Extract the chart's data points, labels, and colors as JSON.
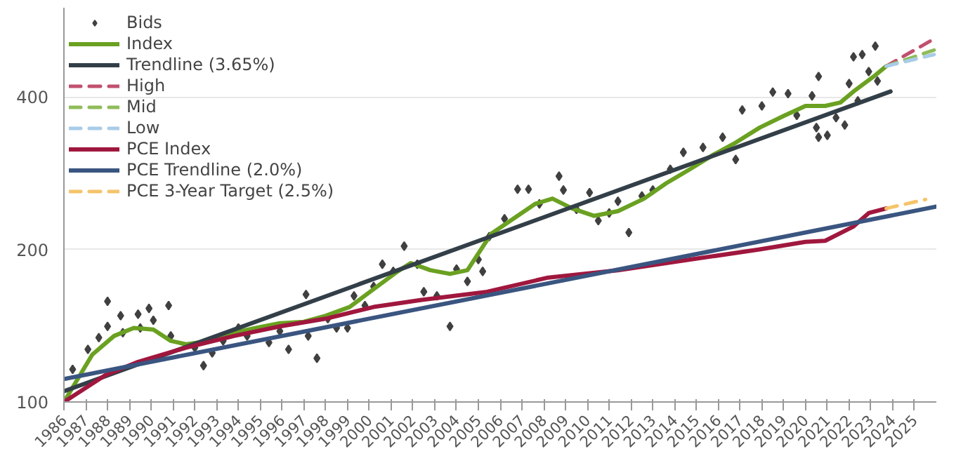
{
  "chart_data": {
    "type": "line",
    "log": "y",
    "grid": "y",
    "legend": "top left",
    "xlim": [
      1986,
      2026
    ],
    "xticks": [
      1986,
      1987,
      1988,
      1989,
      1990,
      1991,
      1992,
      1993,
      1994,
      1995,
      1996,
      1997,
      1998,
      1999,
      2000,
      2001,
      2002,
      2003,
      2004,
      2005,
      2006,
      2007,
      2008,
      2009,
      2010,
      2011,
      2012,
      2013,
      2014,
      2015,
      2016,
      2017,
      2018,
      2019,
      2020,
      2021,
      2022,
      2023,
      2024,
      2025
    ],
    "ylim": [
      100,
      600
    ],
    "yticks": [
      100,
      200,
      400
    ],
    "series": [
      {
        "name": "Bids",
        "type": "scatter",
        "marker": "diamond",
        "color": "#404040",
        "x": [
          1988.0,
          1988.0,
          1988.6,
          1988.7,
          1989.4,
          1989.5,
          1989.9,
          1990.1,
          1990.8,
          1990.9,
          1987.6,
          1986.4,
          1987.1,
          1992.0,
          1992.4,
          1992.8,
          1993.3,
          1994.0,
          1994.4,
          1995.4,
          1995.9,
          1996.3,
          1997.1,
          1997.6,
          1998.1,
          1997.2,
          1998.5,
          1999.0,
          1999.3,
          1999.8,
          2000.2,
          2000.6,
          2001.1,
          2001.6,
          2002.2,
          2002.5,
          2003.1,
          2003.7,
          2004.0,
          2004.5,
          2005.0,
          2005.2,
          2006.8,
          2007.3,
          2008.7,
          2008.9,
          2010.1,
          2011.4,
          2011.9,
          2013.8,
          2014.4,
          2015.3,
          2016.2,
          2016.8,
          2017.1,
          2018.0,
          2018.5,
          2019.2,
          2019.6,
          2020.3,
          2020.6,
          2020.5,
          2021.0,
          2020.6,
          2021.4,
          2021.8,
          2022.0,
          2022.2,
          2022.6,
          2023.2,
          2022.9,
          2023.3,
          2022.4,
          2009.5,
          2010.5,
          2011.0,
          2012.5,
          2013.0,
          2005.5,
          2006.2,
          2007.8
        ],
        "values": [
          158,
          141,
          148,
          137,
          149,
          140,
          153,
          145,
          155,
          135,
          134,
          116,
          127,
          128,
          118,
          125,
          132,
          140,
          135,
          131,
          138,
          127,
          163,
          122,
          146,
          135,
          140,
          140,
          162,
          155,
          169,
          187,
          181,
          203,
          187,
          165,
          162,
          141,
          183,
          173,
          191,
          181,
          263,
          263,
          279,
          262,
          259,
          249,
          216,
          288,
          311,
          318,
          333,
          301,
          377,
          384,
          409,
          406,
          368,
          402,
          439,
          348,
          336,
          333,
          364,
          352,
          425,
          480,
          485,
          504,
          449,
          430,
          393,
          240,
          228,
          236,
          255,
          262,
          212,
          230,
          246
        ]
      },
      {
        "name": "Index",
        "color": "#6aa121",
        "x": [
          1986,
          1987.3,
          1988.3,
          1989.2,
          1990.1,
          1990.9,
          1991.6,
          1992.7,
          1993.8,
          1994.8,
          1995.9,
          1997,
          1998,
          1999.1,
          2000.2,
          2001.3,
          2001.9,
          2002.8,
          2003.7,
          2004.5,
          2005.6,
          2007.6,
          2008.4,
          2009.3,
          2010.3,
          2011.4,
          2012.6,
          2013.6,
          2014.7,
          2015.8,
          2016.8,
          2017.9,
          2019,
          2020,
          2020.9,
          2021.6,
          2022.2,
          2023.1,
          2023.7
        ],
        "values": [
          100,
          124,
          135,
          140,
          139,
          132,
          130,
          132,
          137,
          140,
          143,
          144,
          148,
          154,
          167,
          181,
          188,
          182,
          179,
          182,
          215,
          246,
          252,
          241,
          233,
          238,
          252,
          270,
          288,
          308,
          325,
          348,
          367,
          384,
          384,
          390,
          410,
          438,
          460
        ]
      },
      {
        "name": "Trendline (3.65%)",
        "color": "#333f48",
        "x": [
          1986,
          2023.9
        ],
        "values": [
          105,
          410
        ]
      },
      {
        "name": "High",
        "color": "#c0506e",
        "line_style": "dashed",
        "x": [
          2023.7,
          2025.8
        ],
        "values": [
          460,
          518
        ]
      },
      {
        "name": "Mid",
        "color": "#8fbc5a",
        "line_style": "dashed",
        "x": [
          2023.7,
          2025.9
        ],
        "values": [
          460,
          495
        ]
      },
      {
        "name": "Low",
        "color": "#a8cce8",
        "line_style": "dashed",
        "x": [
          2023.7,
          2025.9
        ],
        "values": [
          460,
          485
        ]
      },
      {
        "name": "PCE Index",
        "color": "#a0173e",
        "x": [
          1986,
          1987.9,
          1989.4,
          1991.6,
          1993.8,
          1995.9,
          1998,
          2000.2,
          2002.4,
          2005.4,
          2008.2,
          2011.4,
          2014.7,
          2017.9,
          2020,
          2020.9,
          2022.2,
          2022.9,
          2023.7
        ],
        "values": [
          100,
          113,
          120,
          128,
          135,
          141,
          146,
          154,
          159,
          165,
          176,
          182,
          191,
          200,
          207,
          208,
          222,
          236,
          241
        ]
      },
      {
        "name": "PCE Trendline (2.0%)",
        "color": "#3a5580",
        "x": [
          1986,
          2026
        ],
        "values": [
          111,
          243
        ]
      },
      {
        "name": "PCE 3-Year Target (2.5%)",
        "color": "#f5c46a",
        "line_style": "dashed",
        "x": [
          2023.7,
          2025.5
        ],
        "values": [
          241,
          251
        ]
      }
    ]
  }
}
